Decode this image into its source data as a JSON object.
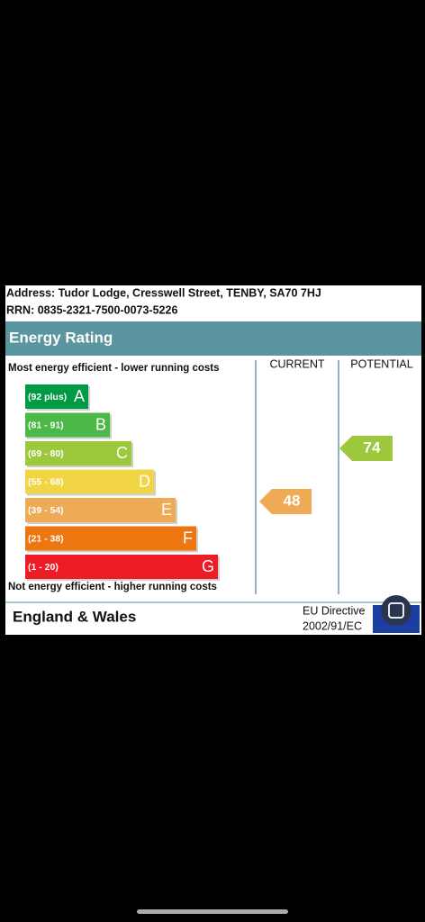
{
  "header": {
    "address": "Address: Tudor Lodge, Cresswell Street, TENBY, SA70 7HJ",
    "rrn": "RRN: 0835-2321-7500-0073-5226"
  },
  "title": "Energy Rating",
  "top_note": "Most energy efficient - lower running costs",
  "bottom_note": "Not energy efficient - higher running costs",
  "columns": [
    "CURRENT",
    "POTENTIAL"
  ],
  "bands": [
    {
      "range": "(92 plus)",
      "letter": "A"
    },
    {
      "range": "(81 - 91)",
      "letter": "B"
    },
    {
      "range": "(69 - 80)",
      "letter": "C"
    },
    {
      "range": "(55 - 68)",
      "letter": "D"
    },
    {
      "range": "(39 - 54)",
      "letter": "E"
    },
    {
      "range": "(21 - 38)",
      "letter": "F"
    },
    {
      "range": "(1 - 20)",
      "letter": "G"
    }
  ],
  "current": 48,
  "potential": 74,
  "footer": {
    "region": "England & Wales",
    "directive": [
      "EU Directive",
      "2002/91/EC"
    ]
  }
}
